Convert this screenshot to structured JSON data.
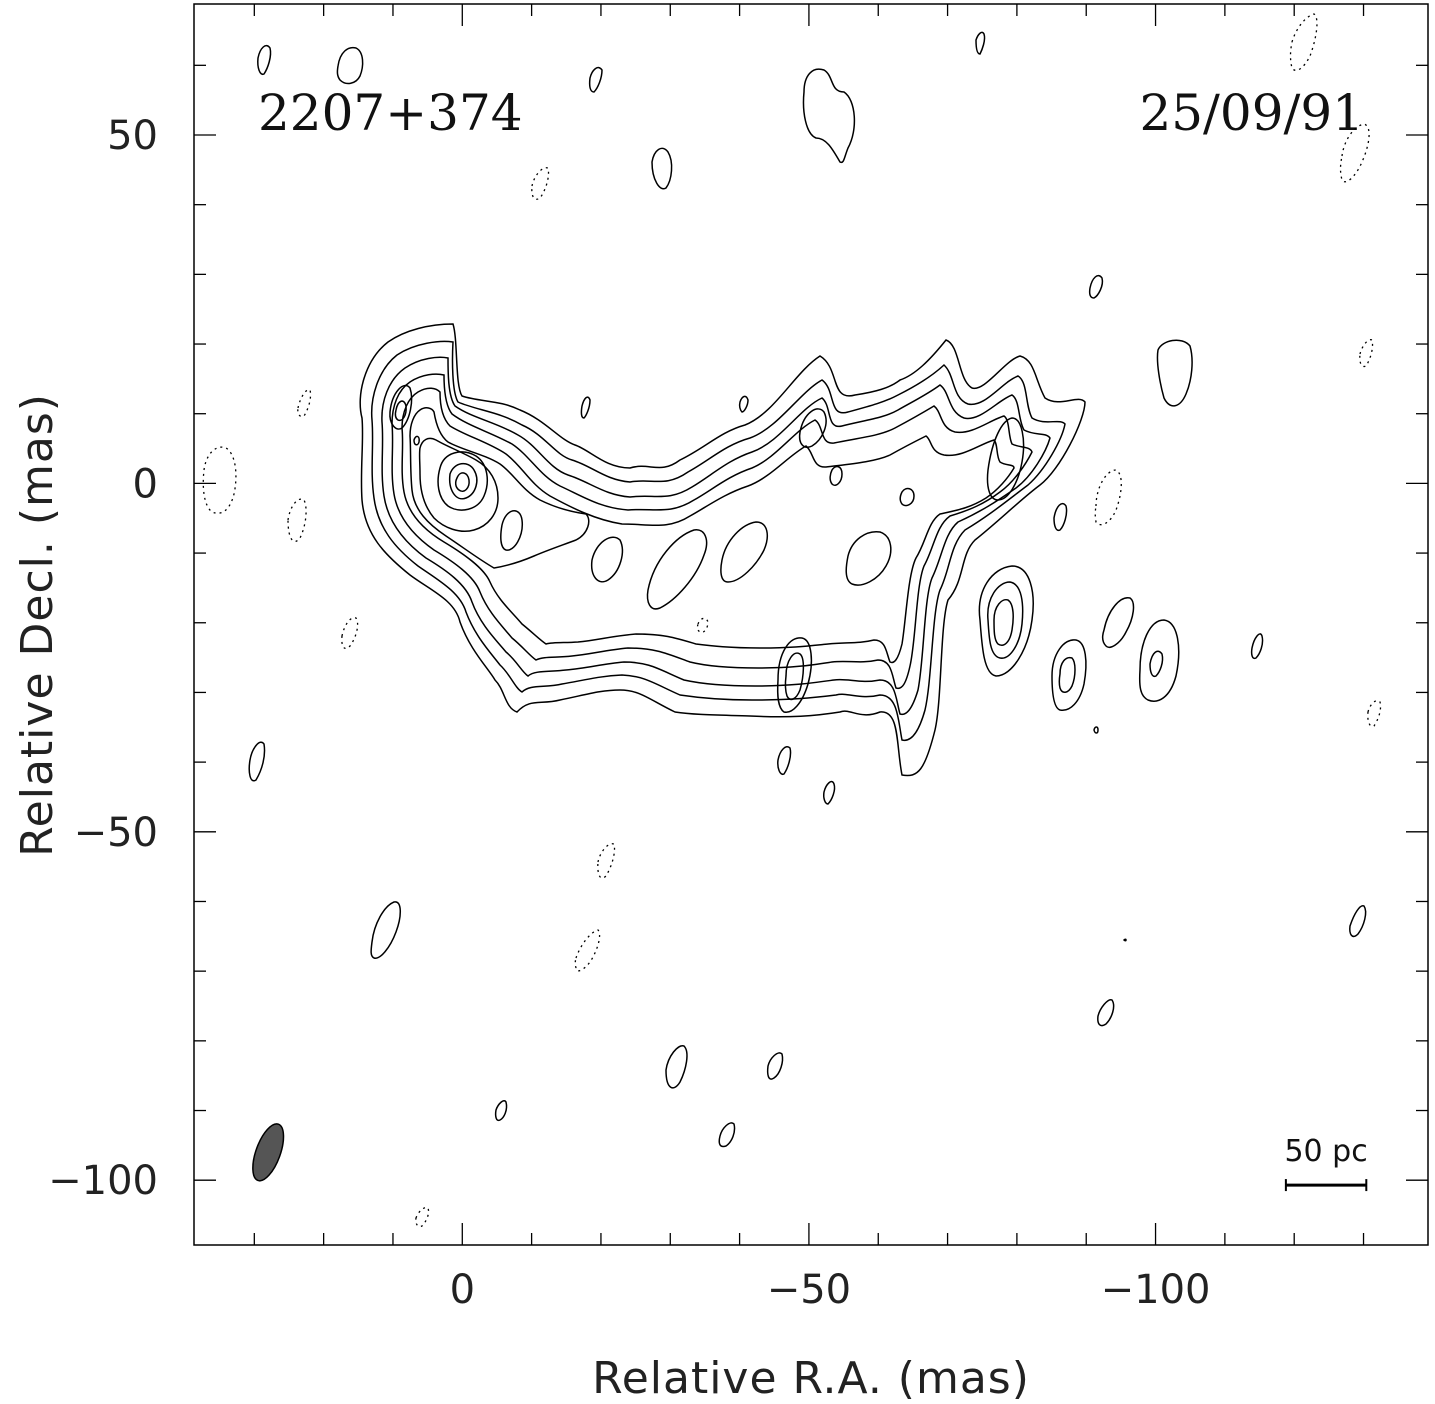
{
  "chart_data": {
    "type": "contour",
    "source": "2207+374",
    "date": "25/09/91",
    "xlabel": "Relative R.A. (mas)",
    "ylabel": "Relative Decl. (mas)",
    "xlim": [
      38.7,
      -139.3
    ],
    "ylim": [
      -109.3,
      68.8
    ],
    "x_ticks": [
      0,
      -50,
      -100
    ],
    "x_tick_labels": [
      "0",
      "−50",
      "−100"
    ],
    "y_ticks": [
      50,
      0,
      -50,
      -100
    ],
    "y_tick_labels": [
      "50",
      "0",
      "−50",
      "−100"
    ],
    "x_minor_step": 10,
    "y_minor_step": 10,
    "peak": {
      "x": 0,
      "y": 1
    },
    "beam": {
      "x": 28,
      "y": -96,
      "major_axis": 8.6,
      "minor_axis": 3.5,
      "pa_deg": 20,
      "fill": "#555555"
    },
    "scale_bar": {
      "label": "50 pc",
      "x_start": -118.8,
      "x_end": -130.4,
      "y": -100.7
    },
    "contour_style": {
      "positive": "solid",
      "negative": "dotted",
      "color": "#000000"
    }
  }
}
